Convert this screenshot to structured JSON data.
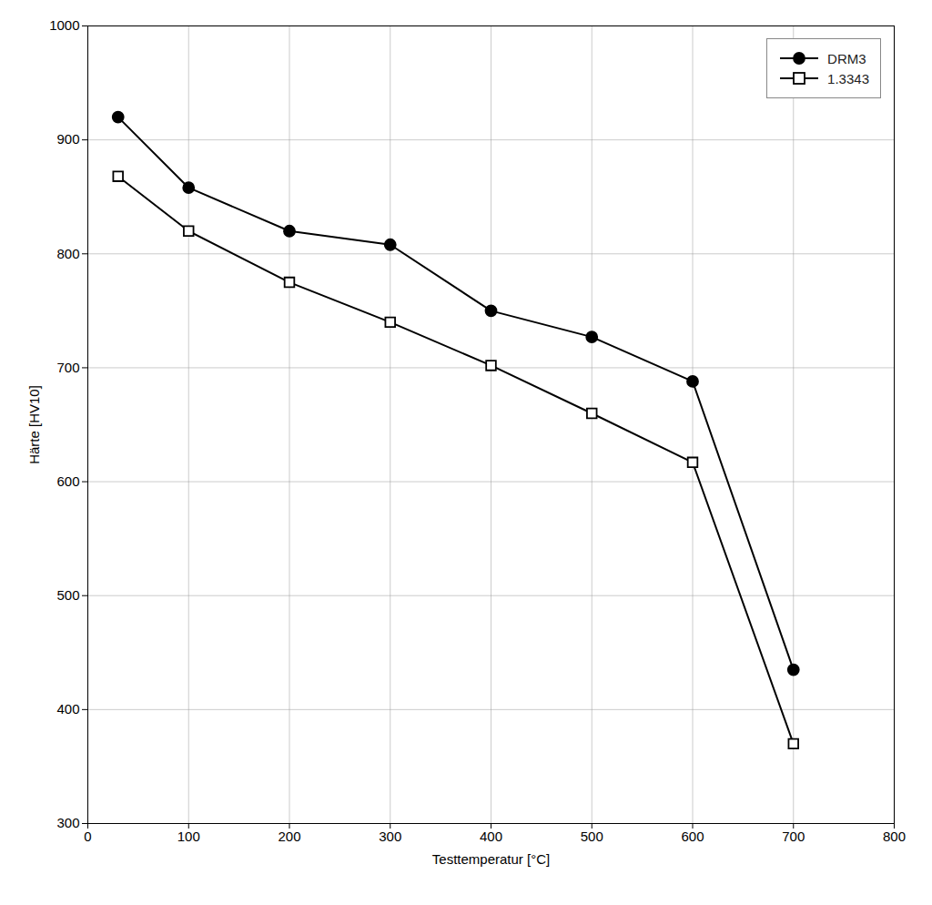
{
  "chart_data": {
    "type": "line",
    "xlabel": "Testtemperatur [°C]",
    "ylabel": "Härte [HV10]",
    "x": [
      30,
      100,
      200,
      300,
      400,
      500,
      600,
      700
    ],
    "series": [
      {
        "name": "DRM3",
        "color": "#000000",
        "marker": "circle",
        "line_style": "solid",
        "values": [
          920,
          858,
          820,
          808,
          750,
          727,
          688,
          435
        ]
      },
      {
        "name": "1.3343",
        "color": "#000000",
        "marker": "square",
        "line_style": "solid",
        "values": [
          868,
          820,
          775,
          740,
          702,
          660,
          617,
          370
        ]
      }
    ],
    "xlim": [
      0,
      800
    ],
    "xticks": [
      0,
      100,
      200,
      300,
      400,
      500,
      600,
      700,
      800
    ],
    "ylim": [
      300,
      1000
    ],
    "yticks": [
      300,
      400,
      500,
      600,
      700,
      800,
      900,
      1000
    ],
    "grid": true,
    "legend": "upper right"
  }
}
